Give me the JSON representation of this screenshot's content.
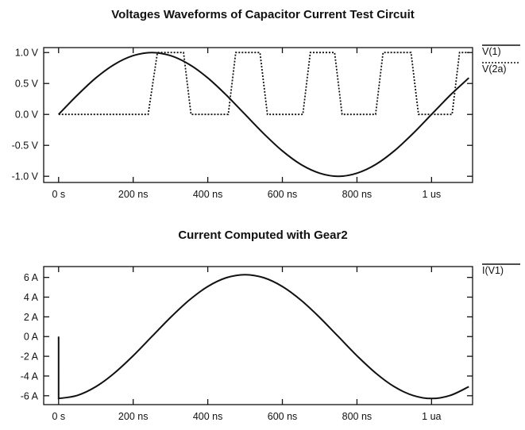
{
  "chart_data": [
    {
      "type": "line",
      "title": "Voltages Waveforms of Capacitor Current Test Circuit",
      "xlabel": "",
      "ylabel": "",
      "x_ticks": [
        {
          "value": 0,
          "label": "0 s"
        },
        {
          "value": 200,
          "label": "200 ns"
        },
        {
          "value": 400,
          "label": "400 ns"
        },
        {
          "value": 600,
          "label": "600 ns"
        },
        {
          "value": 800,
          "label": "800 ns"
        },
        {
          "value": 1000,
          "label": "1 us"
        }
      ],
      "y_ticks": [
        {
          "value": 1.0,
          "label": "1.0 V"
        },
        {
          "value": 0.5,
          "label": "0.5 V"
        },
        {
          "value": 0.0,
          "label": "0.0 V"
        },
        {
          "value": -0.5,
          "label": "-0.5 V"
        },
        {
          "value": -1.0,
          "label": "-1.0 V"
        }
      ],
      "xlim": [
        -40,
        1110
      ],
      "ylim": [
        -1.1,
        1.08
      ],
      "legend_position": "right",
      "series": [
        {
          "name": "V(1)",
          "style": "solid",
          "x": [
            0,
            50,
            100,
            150,
            200,
            250,
            300,
            350,
            400,
            450,
            500,
            550,
            600,
            650,
            700,
            750,
            800,
            850,
            900,
            950,
            1000,
            1050,
            1100
          ],
          "y": [
            0.0,
            0.31,
            0.59,
            0.81,
            0.95,
            1.0,
            0.95,
            0.81,
            0.59,
            0.31,
            0.0,
            -0.31,
            -0.59,
            -0.81,
            -0.95,
            -1.0,
            -0.95,
            -0.81,
            -0.59,
            -0.31,
            0.0,
            0.31,
            0.59
          ]
        },
        {
          "name": "V(2a)",
          "style": "dotted",
          "x": [
            0,
            240,
            265,
            335,
            355,
            455,
            475,
            540,
            560,
            655,
            675,
            740,
            760,
            850,
            870,
            945,
            965,
            1055,
            1075,
            1100
          ],
          "y": [
            0,
            0,
            1,
            1,
            0,
            0,
            1,
            1,
            0,
            0,
            1,
            1,
            0,
            0,
            1,
            1,
            0,
            0,
            1,
            1
          ]
        }
      ]
    },
    {
      "type": "line",
      "title": "Current Computed with Gear2",
      "xlabel": "",
      "ylabel": "",
      "x_ticks": [
        {
          "value": 0,
          "label": "0 s"
        },
        {
          "value": 200,
          "label": "200 ns"
        },
        {
          "value": 400,
          "label": "400 ns"
        },
        {
          "value": 600,
          "label": "600 ns"
        },
        {
          "value": 800,
          "label": "800 ns"
        },
        {
          "value": 1000,
          "label": "1 ua"
        }
      ],
      "y_ticks": [
        {
          "value": 6,
          "label": "6 A"
        },
        {
          "value": 4,
          "label": "4 A"
        },
        {
          "value": 2,
          "label": "2 A"
        },
        {
          "value": 0,
          "label": "0 A"
        },
        {
          "value": -2,
          "label": "-2 A"
        },
        {
          "value": -4,
          "label": "-4 A"
        },
        {
          "value": -6,
          "label": "-6 A"
        }
      ],
      "xlim": [
        -40,
        1110
      ],
      "ylim": [
        -6.9,
        7.1
      ],
      "legend_position": "right",
      "series": [
        {
          "name": "I(V1)",
          "style": "solid",
          "x": [
            0,
            0,
            0,
            50,
            100,
            150,
            200,
            250,
            300,
            350,
            400,
            450,
            500,
            550,
            600,
            650,
            700,
            750,
            800,
            850,
            900,
            950,
            1000,
            1050,
            1100
          ],
          "y": [
            0.0,
            -6.28,
            -6.28,
            -5.97,
            -5.08,
            -3.69,
            -1.94,
            0.0,
            1.94,
            3.69,
            5.08,
            5.97,
            6.28,
            5.97,
            5.08,
            3.69,
            1.94,
            0.0,
            -1.94,
            -3.69,
            -5.08,
            -5.97,
            -6.28,
            -5.97,
            -5.08
          ]
        }
      ]
    }
  ]
}
